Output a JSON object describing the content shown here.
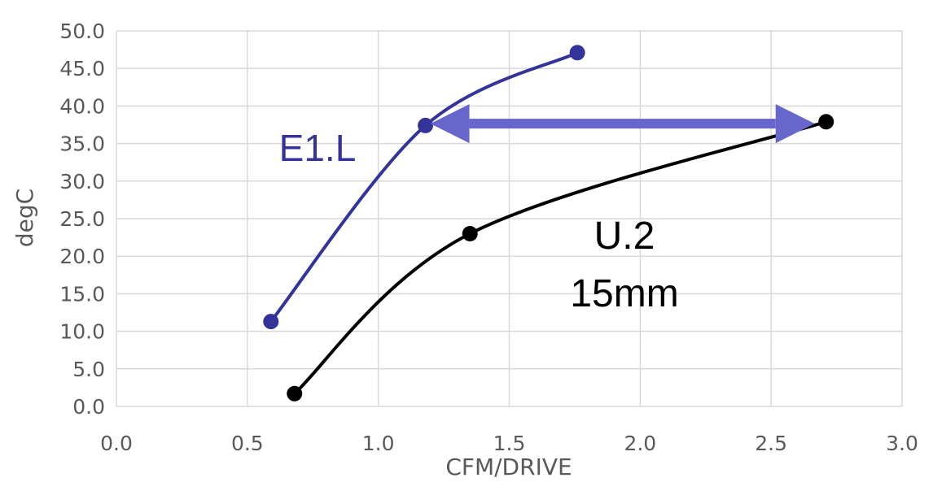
{
  "chart_data": {
    "type": "scatter",
    "xlabel": "CFM/DRIVE",
    "ylabel": "degC",
    "xlim": [
      0,
      3.0
    ],
    "ylim": [
      0,
      50
    ],
    "x_ticks": [
      "0.0",
      "0.5",
      "1.0",
      "1.5",
      "2.0",
      "2.5",
      "3.0"
    ],
    "y_ticks": [
      "0.0",
      "5.0",
      "10.0",
      "15.0",
      "20.0",
      "25.0",
      "30.0",
      "35.0",
      "40.0",
      "45.0",
      "50.0"
    ],
    "grid": true,
    "series": [
      {
        "name": "E1.L",
        "color": "#333399",
        "smooth": true,
        "points": [
          [
            0.59,
            11.3
          ],
          [
            1.18,
            37.4
          ],
          [
            1.76,
            47.1
          ]
        ]
      },
      {
        "name": "U.2 15mm",
        "color": "#000000",
        "smooth": true,
        "points": [
          [
            0.68,
            1.7
          ],
          [
            1.35,
            23.0
          ],
          [
            2.71,
            37.9
          ]
        ]
      }
    ],
    "annotations": [
      {
        "text": "E1.L",
        "color": "#333399"
      },
      {
        "text": "U.2",
        "color": "#000000"
      },
      {
        "text": "15mm",
        "color": "#000000"
      }
    ],
    "arrow": {
      "from": [
        1.18,
        37.4
      ],
      "to": [
        2.71,
        37.9
      ],
      "color": "#6666cc"
    }
  }
}
